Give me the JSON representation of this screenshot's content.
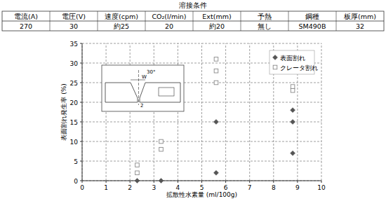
{
  "table": {
    "title": "溶接条件",
    "headers": [
      "電流(A)",
      "電圧(V)",
      "速度(cpm)",
      "CO₂(l/min)",
      "Ext(mm)",
      "予熱",
      "鋼種",
      "板厚(mm)"
    ],
    "rows": [
      [
        "270",
        "30",
        "約25",
        "20",
        "約20",
        "無し",
        "SM490B",
        "32"
      ]
    ]
  },
  "chart_data": {
    "type": "scatter",
    "x_label": "拡散性水素量 (ml/100g)",
    "y_label": "表面割れ発生率 (%)",
    "xlim": [
      0,
      10
    ],
    "ylim": [
      0,
      35
    ],
    "xticks": [
      0,
      1,
      2,
      3,
      4,
      5,
      6,
      7,
      8,
      9,
      10
    ],
    "yticks": [
      0,
      5,
      10,
      15,
      20,
      25,
      30,
      35
    ],
    "grid": true,
    "legend": "upper right",
    "annotations": [
      "30°",
      "W",
      "2"
    ],
    "series": [
      {
        "name": "表面割れ",
        "color": "#555555",
        "marker": "diamond",
        "x": [
          2.3,
          3.3,
          5.6,
          5.6,
          8.8,
          8.8,
          8.8
        ],
        "values": [
          0,
          0,
          15,
          2,
          18,
          15,
          7
        ]
      },
      {
        "name": "クレータ割れ",
        "color": "#888888",
        "marker": "square_open",
        "x": [
          2.3,
          2.3,
          3.3,
          3.3,
          5.6,
          5.6,
          5.6,
          8.8,
          8.8
        ],
        "values": [
          2,
          4,
          10,
          8,
          31,
          28,
          25,
          24,
          23
        ]
      }
    ]
  }
}
